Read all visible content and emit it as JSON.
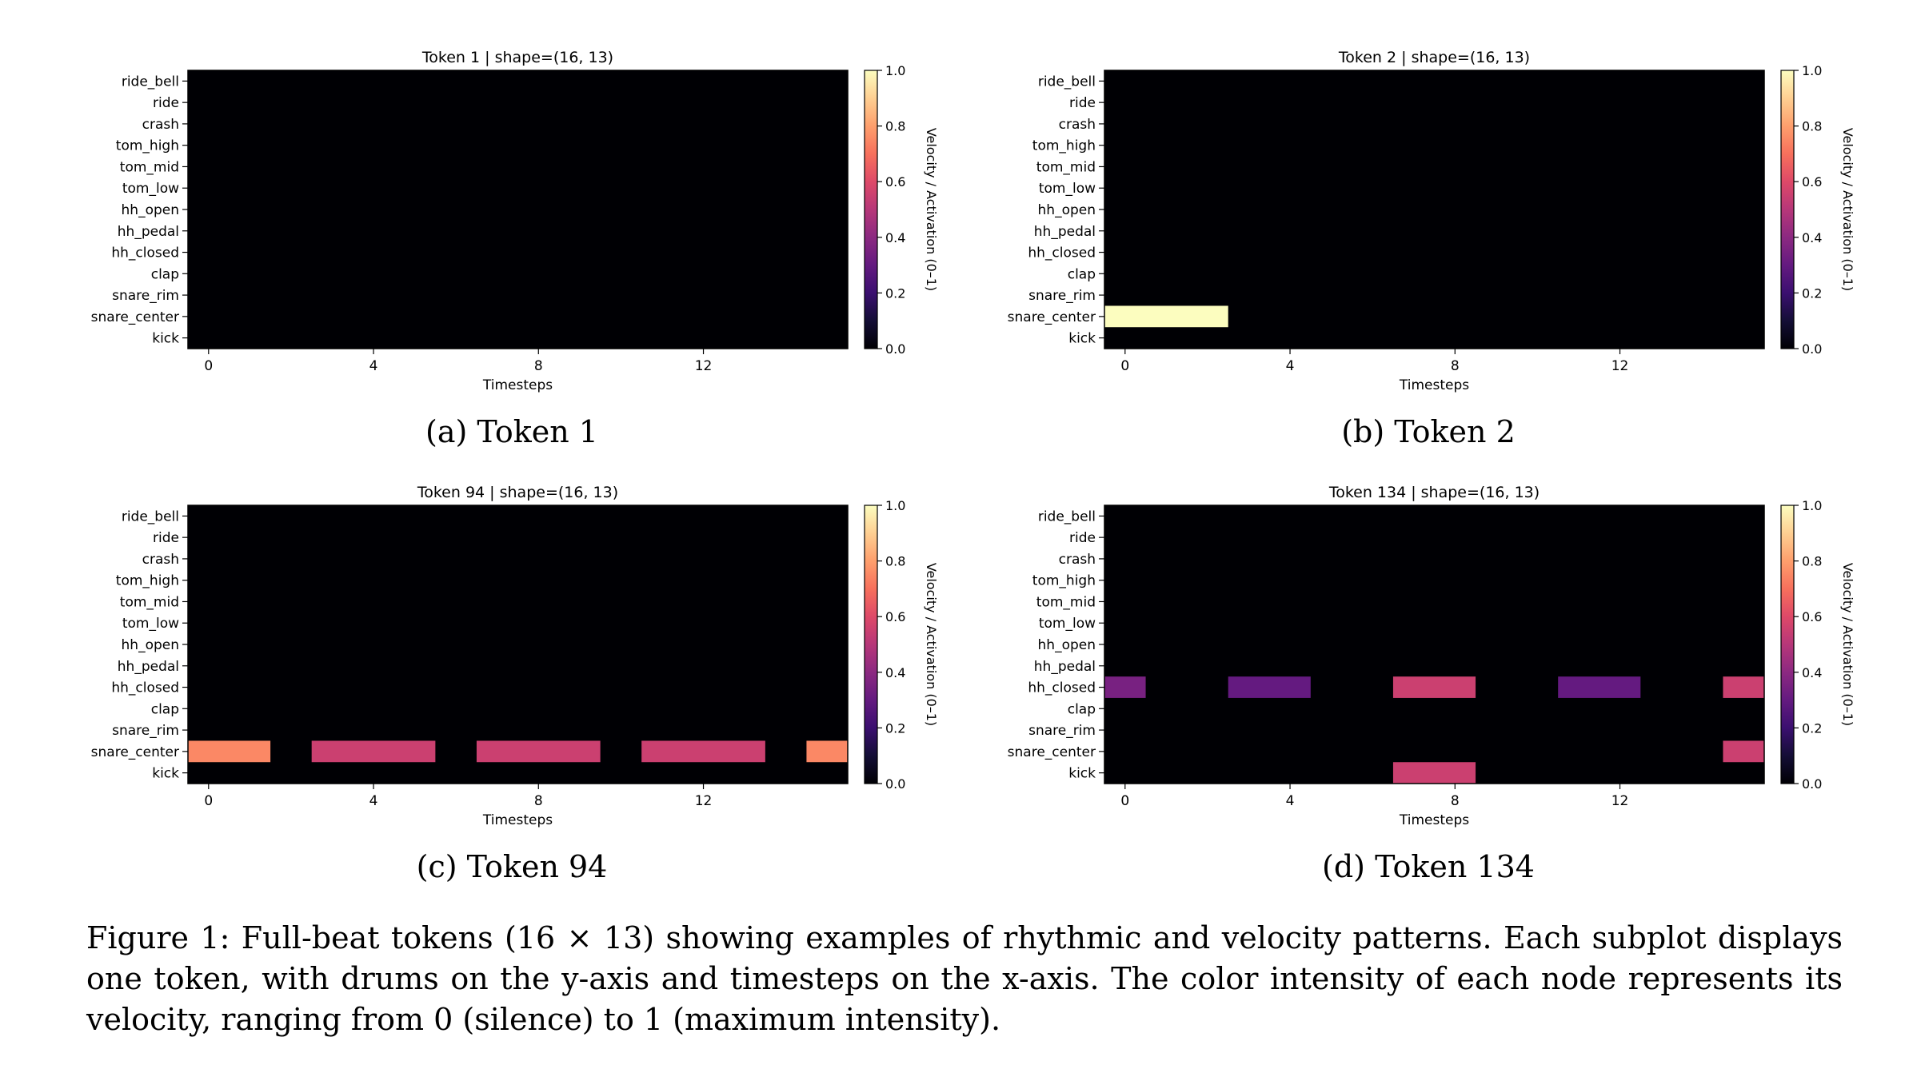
{
  "figure_caption": "Figure 1: Full-beat tokens (16 × 13) showing examples of rhythmic and velocity patterns. Each subplot displays one token, with drums on the y-axis and timesteps on the x-axis. The color intensity of each node represents its velocity, ranging from 0 (silence) to 1 (maximum intensity).",
  "colors": {
    "background": "#000004",
    "colormap": "magma"
  },
  "chart_data": [
    {
      "type": "heatmap",
      "title": "Token 1 | shape=(16, 13)",
      "subcaption": "(a) Token 1",
      "xlabel": "Timesteps",
      "colorbar_label": "Velocity / Activation (0–1)",
      "rows": [
        "ride_bell",
        "ride",
        "crash",
        "tom_high",
        "tom_mid",
        "tom_low",
        "hh_open",
        "hh_pedal",
        "hh_closed",
        "clap",
        "snare_rim",
        "snare_center",
        "kick"
      ],
      "x_ticks": [
        0,
        4,
        8,
        12
      ],
      "x_count": 16,
      "clim": [
        0,
        1
      ],
      "colorbar_ticks": [
        "0.0",
        "0.2",
        "0.4",
        "0.6",
        "0.8",
        "1.0"
      ],
      "active": []
    },
    {
      "type": "heatmap",
      "title": "Token 2 | shape=(16, 13)",
      "subcaption": "(b) Token 2",
      "xlabel": "Timesteps",
      "colorbar_label": "Velocity / Activation (0–1)",
      "rows": [
        "ride_bell",
        "ride",
        "crash",
        "tom_high",
        "tom_mid",
        "tom_low",
        "hh_open",
        "hh_pedal",
        "hh_closed",
        "clap",
        "snare_rim",
        "snare_center",
        "kick"
      ],
      "x_ticks": [
        0,
        4,
        8,
        12
      ],
      "x_count": 16,
      "clim": [
        0,
        1
      ],
      "colorbar_ticks": [
        "0.0",
        "0.2",
        "0.4",
        "0.6",
        "0.8",
        "1.0"
      ],
      "active": [
        {
          "row": "snare_center",
          "start": 0,
          "end": 2,
          "value": 1.0
        }
      ]
    },
    {
      "type": "heatmap",
      "title": "Token 94 | shape=(16, 13)",
      "subcaption": "(c) Token 94",
      "xlabel": "Timesteps",
      "colorbar_label": "Velocity / Activation (0–1)",
      "rows": [
        "ride_bell",
        "ride",
        "crash",
        "tom_high",
        "tom_mid",
        "tom_low",
        "hh_open",
        "hh_pedal",
        "hh_closed",
        "clap",
        "snare_rim",
        "snare_center",
        "kick"
      ],
      "x_ticks": [
        0,
        4,
        8,
        12
      ],
      "x_count": 16,
      "clim": [
        0,
        1
      ],
      "colorbar_ticks": [
        "0.0",
        "0.2",
        "0.4",
        "0.6",
        "0.8",
        "1.0"
      ],
      "active": [
        {
          "row": "snare_center",
          "start": 0,
          "end": 1,
          "value": 0.75
        },
        {
          "row": "snare_center",
          "start": 3,
          "end": 5,
          "value": 0.55
        },
        {
          "row": "snare_center",
          "start": 7,
          "end": 9,
          "value": 0.55
        },
        {
          "row": "snare_center",
          "start": 11,
          "end": 13,
          "value": 0.55
        },
        {
          "row": "snare_center",
          "start": 15,
          "end": 15,
          "value": 0.75
        }
      ]
    },
    {
      "type": "heatmap",
      "title": "Token 134 | shape=(16, 13)",
      "subcaption": "(d) Token 134",
      "xlabel": "Timesteps",
      "colorbar_label": "Velocity / Activation (0–1)",
      "rows": [
        "ride_bell",
        "ride",
        "crash",
        "tom_high",
        "tom_mid",
        "tom_low",
        "hh_open",
        "hh_pedal",
        "hh_closed",
        "clap",
        "snare_rim",
        "snare_center",
        "kick"
      ],
      "x_ticks": [
        0,
        4,
        8,
        12
      ],
      "x_count": 16,
      "clim": [
        0,
        1
      ],
      "colorbar_ticks": [
        "0.0",
        "0.2",
        "0.4",
        "0.6",
        "0.8",
        "1.0"
      ],
      "active": [
        {
          "row": "hh_closed",
          "start": 0,
          "end": 0,
          "value": 0.35
        },
        {
          "row": "hh_closed",
          "start": 3,
          "end": 4,
          "value": 0.3
        },
        {
          "row": "hh_closed",
          "start": 7,
          "end": 8,
          "value": 0.55
        },
        {
          "row": "hh_closed",
          "start": 11,
          "end": 12,
          "value": 0.3
        },
        {
          "row": "hh_closed",
          "start": 15,
          "end": 15,
          "value": 0.55
        },
        {
          "row": "snare_center",
          "start": 15,
          "end": 15,
          "value": 0.55
        },
        {
          "row": "kick",
          "start": 7,
          "end": 8,
          "value": 0.55
        }
      ]
    }
  ]
}
